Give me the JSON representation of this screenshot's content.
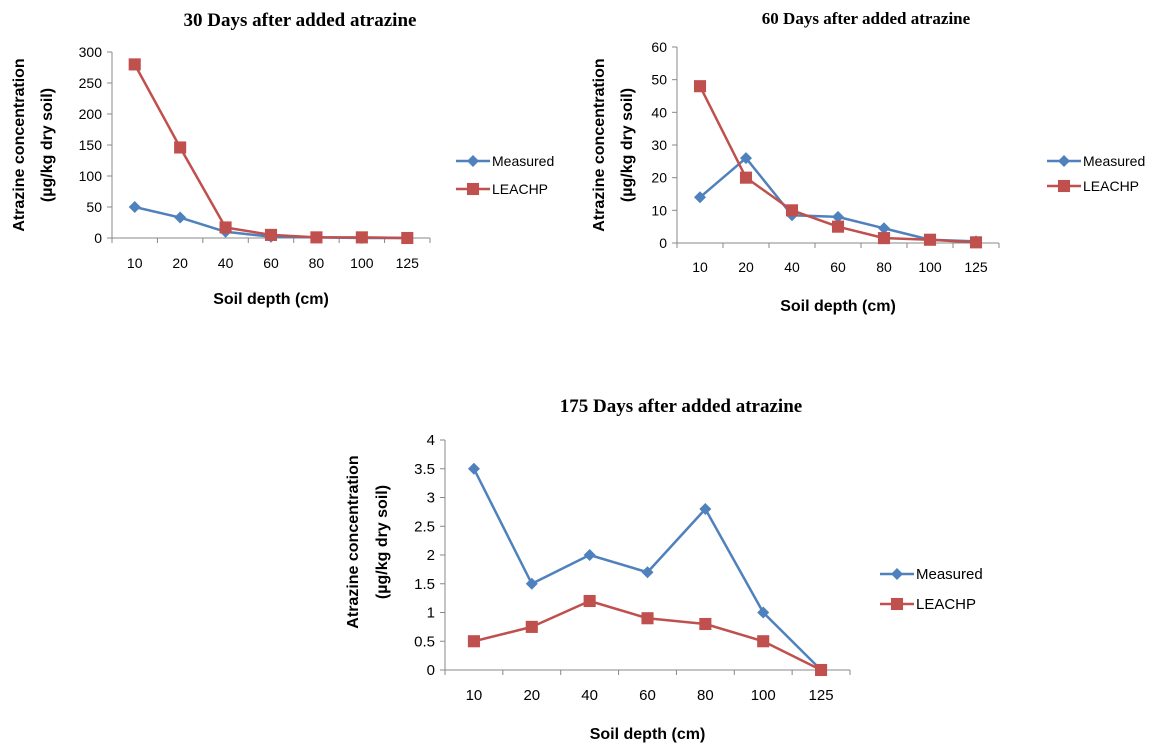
{
  "colors": {
    "measured": "#4F81BD",
    "leachp": "#C0504D",
    "axis": "#888888"
  },
  "chart_data": [
    {
      "type": "line",
      "title": "30 Days after added atrazine",
      "xlabel": "Soil depth (cm)",
      "ylabel_line1": "Atrazine concentration",
      "ylabel_line2": "(µg/kg dry soil)",
      "categories": [
        "10",
        "20",
        "40",
        "60",
        "80",
        "100",
        "125"
      ],
      "ylim": [
        0,
        300
      ],
      "yticks": [
        0,
        50,
        100,
        150,
        200,
        250,
        300
      ],
      "ytick_labels": [
        "0",
        "50",
        "100",
        "150",
        "200",
        "250",
        "300"
      ],
      "legend_position": "right",
      "series": [
        {
          "name": "Measured",
          "marker": "diamond",
          "values": [
            50,
            33,
            10,
            2,
            1,
            0,
            0
          ]
        },
        {
          "name": "LEACHP",
          "marker": "square",
          "values": [
            280,
            146,
            17,
            5,
            1,
            1,
            0
          ]
        }
      ]
    },
    {
      "type": "line",
      "title": "60 Days after added atrazine",
      "xlabel": "Soil depth (cm)",
      "ylabel_line1": "Atrazine concentration",
      "ylabel_line2": "(µg/kg dry soil)",
      "categories": [
        "10",
        "20",
        "40",
        "60",
        "80",
        "100",
        "125"
      ],
      "ylim": [
        0,
        60
      ],
      "yticks": [
        0,
        10,
        20,
        30,
        40,
        50,
        60
      ],
      "ytick_labels": [
        "0",
        "10",
        "20",
        "30",
        "40",
        "50",
        "60"
      ],
      "legend_position": "right",
      "series": [
        {
          "name": "Measured",
          "marker": "diamond",
          "values": [
            14,
            26,
            8.5,
            8,
            4.5,
            1,
            0.5
          ]
        },
        {
          "name": "LEACHP",
          "marker": "square",
          "values": [
            48,
            20,
            10,
            5,
            1.5,
            1,
            0.2
          ]
        }
      ]
    },
    {
      "type": "line",
      "title": "175 Days after added atrazine",
      "xlabel": "Soil depth (cm)",
      "ylabel_line1": "Atrazine concentration",
      "ylabel_line2": "(µg/kg dry soil)",
      "categories": [
        "10",
        "20",
        "40",
        "60",
        "80",
        "100",
        "125"
      ],
      "ylim": [
        0,
        4
      ],
      "yticks": [
        0,
        0.5,
        1,
        1.5,
        2,
        2.5,
        3,
        3.5,
        4
      ],
      "ytick_labels": [
        "0",
        "0.5",
        "1",
        "1.5",
        "2",
        "2.5",
        "3",
        "3.5",
        "4"
      ],
      "legend_position": "right",
      "series": [
        {
          "name": "Measured",
          "marker": "diamond",
          "values": [
            3.5,
            1.5,
            2,
            1.7,
            2.8,
            1,
            0
          ]
        },
        {
          "name": "LEACHP",
          "marker": "square",
          "values": [
            0.5,
            0.75,
            1.2,
            0.9,
            0.8,
            0.5,
            0
          ]
        }
      ]
    }
  ]
}
